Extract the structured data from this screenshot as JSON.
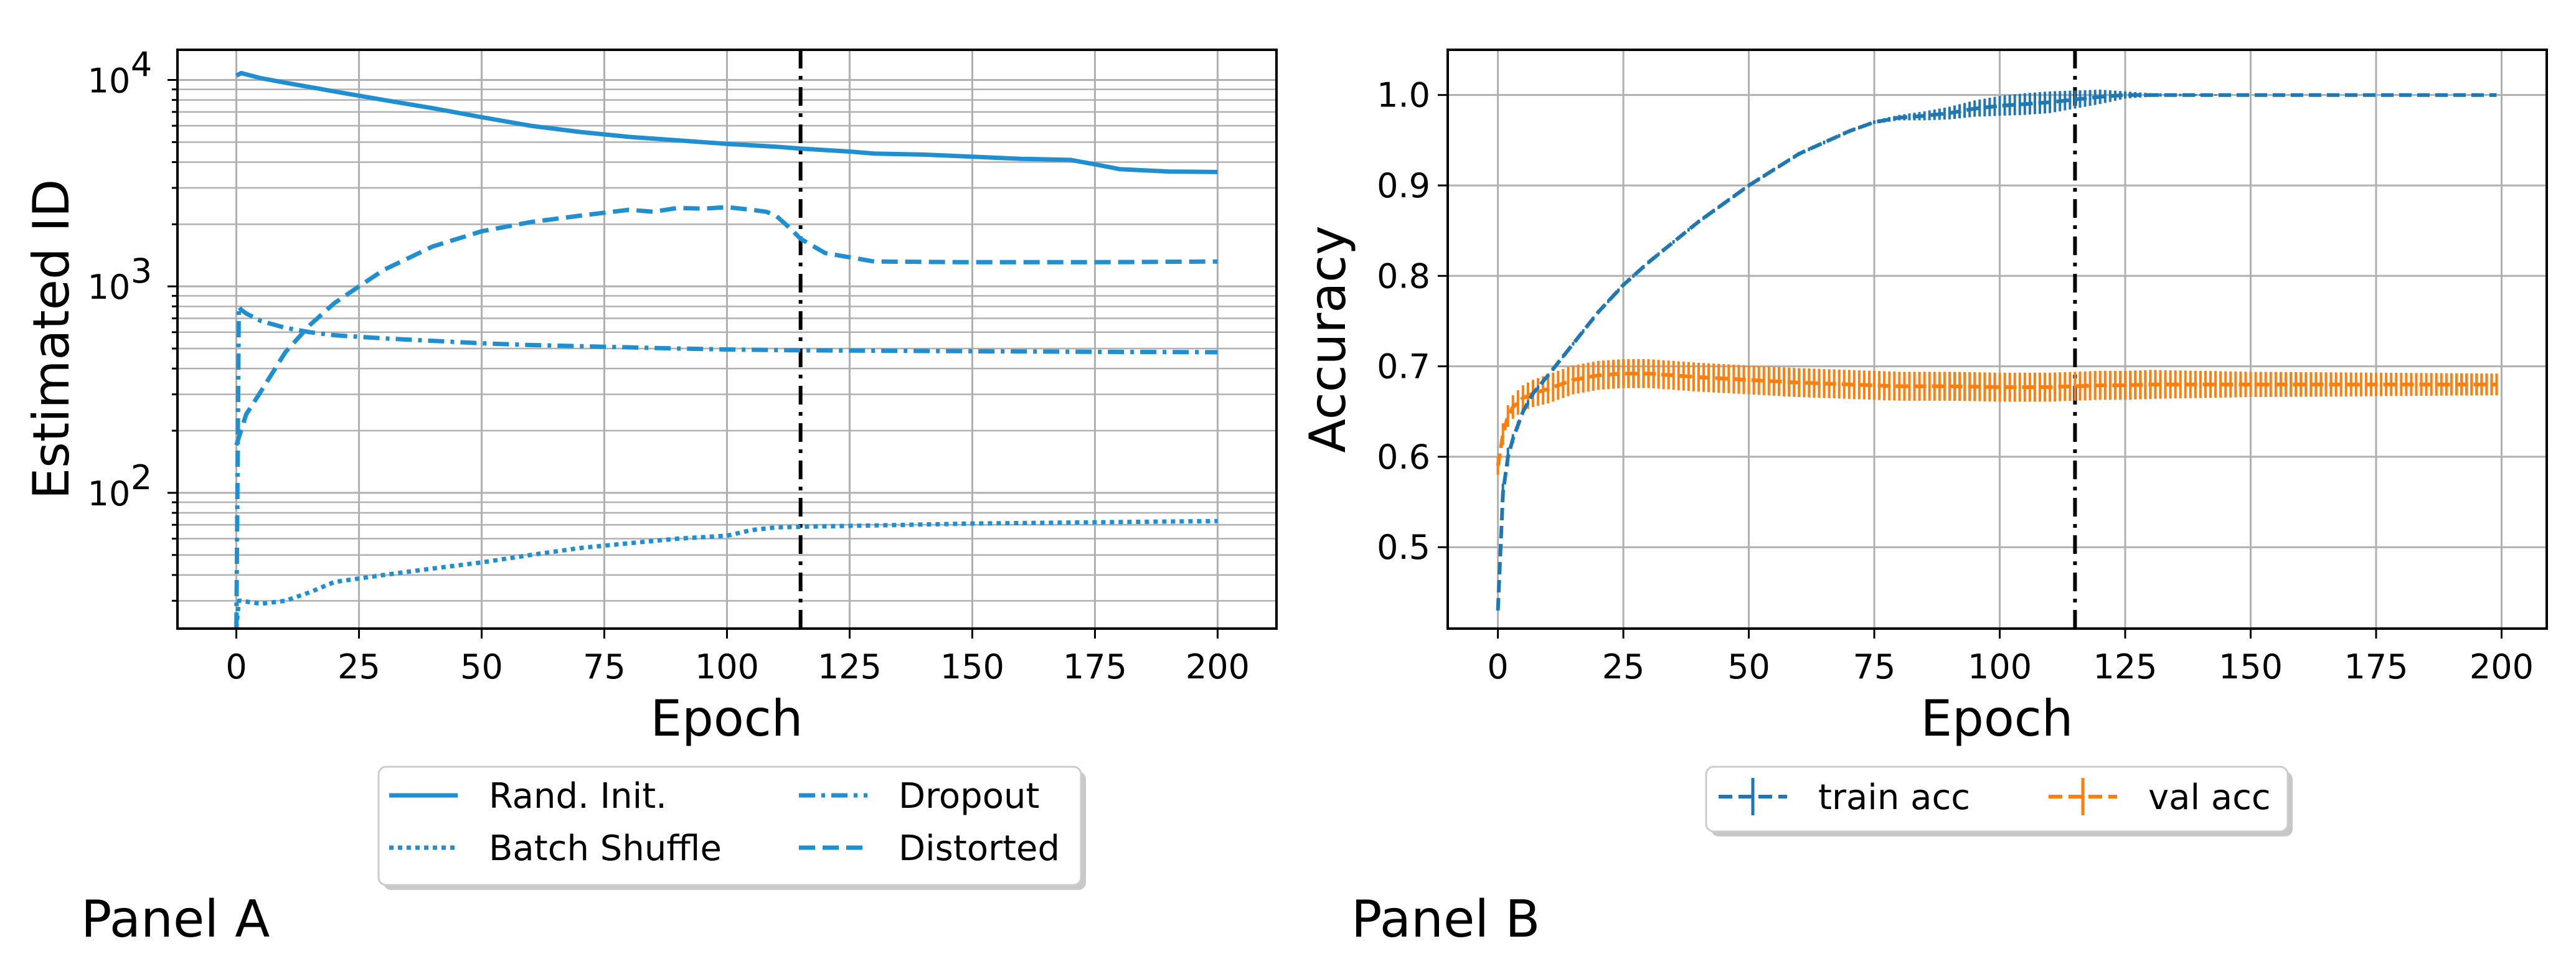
{
  "colors": {
    "blue": "#1f8fd2",
    "train": "#1f77b4",
    "orange": "#ff7f0e",
    "grid": "#b0b0b0"
  },
  "panels": {
    "a": "Panel A",
    "b": "Panel B"
  },
  "chart_data": [
    {
      "type": "line",
      "id": "panel-a",
      "xlabel": "Epoch",
      "ylabel": "Estimated ID",
      "yscale": "log",
      "xlim": [
        -12,
        212
      ],
      "ylim": [
        22,
        14000
      ],
      "xticks": [
        0,
        25,
        50,
        75,
        100,
        125,
        150,
        175,
        200
      ],
      "yticks": [
        {
          "value": 100,
          "label": "10",
          "exp": "2"
        },
        {
          "value": 1000,
          "label": "10",
          "exp": "3"
        },
        {
          "value": 10000,
          "label": "10",
          "exp": "4"
        }
      ],
      "vline": 115,
      "grid": true,
      "legend_position": "below",
      "series": [
        {
          "name": "Rand. Init.",
          "style": "solid",
          "x": [
            0,
            1,
            5,
            10,
            20,
            30,
            40,
            50,
            60,
            70,
            80,
            90,
            100,
            110,
            115,
            125,
            130,
            140,
            150,
            160,
            170,
            175,
            180,
            190,
            200
          ],
          "y": [
            10500,
            10800,
            10200,
            9700,
            8800,
            8000,
            7300,
            6600,
            6000,
            5600,
            5300,
            5100,
            4900,
            4750,
            4650,
            4500,
            4400,
            4350,
            4250,
            4150,
            4100,
            3900,
            3700,
            3600,
            3580
          ]
        },
        {
          "name": "Batch Shuffle",
          "style": "dotted",
          "x": [
            0,
            0.5,
            1,
            5,
            10,
            15,
            20,
            30,
            40,
            50,
            60,
            70,
            80,
            90,
            100,
            105,
            110,
            115,
            130,
            150,
            175,
            200
          ],
          "y": [
            22,
            30,
            30,
            29,
            30,
            33,
            37,
            40,
            43,
            46,
            50,
            54,
            57,
            60,
            62,
            66,
            68,
            68.5,
            69.5,
            71,
            72,
            73
          ]
        },
        {
          "name": "Dropout",
          "style": "dashdot",
          "x": [
            0,
            0.5,
            1,
            2,
            5,
            10,
            15,
            20,
            25,
            30,
            40,
            50,
            60,
            75,
            90,
            100,
            115,
            130,
            150,
            175,
            200
          ],
          "y": [
            22,
            800,
            770,
            740,
            680,
            630,
            600,
            580,
            570,
            560,
            545,
            530,
            520,
            510,
            500,
            495,
            490,
            488,
            485,
            482,
            480
          ]
        },
        {
          "name": "Distorted",
          "style": "dashed",
          "x": [
            0,
            2,
            5,
            10,
            15,
            20,
            25,
            30,
            40,
            50,
            60,
            70,
            80,
            85,
            90,
            95,
            100,
            105,
            108,
            110,
            113,
            115,
            120,
            130,
            150,
            175,
            200
          ],
          "y": [
            170,
            240,
            310,
            480,
            650,
            830,
            1000,
            1200,
            1560,
            1850,
            2050,
            2200,
            2350,
            2300,
            2400,
            2380,
            2420,
            2350,
            2300,
            2200,
            1900,
            1700,
            1450,
            1320,
            1310,
            1310,
            1320
          ]
        }
      ]
    },
    {
      "type": "line",
      "id": "panel-b",
      "xlabel": "Epoch",
      "ylabel": "Accuracy",
      "xlim": [
        -10,
        209
      ],
      "ylim": [
        0.41,
        1.05
      ],
      "xticks": [
        0,
        25,
        50,
        75,
        100,
        125,
        150,
        175,
        200
      ],
      "yticks": [
        0.5,
        0.6,
        0.7,
        0.8,
        0.9,
        1.0
      ],
      "vline": 115,
      "grid": true,
      "legend_position": "below",
      "series": [
        {
          "name": "train acc",
          "style": "dashed-errorbar",
          "x": [
            0,
            1,
            2,
            3,
            5,
            7,
            10,
            15,
            20,
            25,
            30,
            40,
            50,
            60,
            70,
            75,
            80,
            85,
            90,
            95,
            100,
            105,
            110,
            115,
            120,
            125,
            130,
            150,
            175,
            199
          ],
          "y": [
            0.43,
            0.56,
            0.6,
            0.62,
            0.65,
            0.67,
            0.69,
            0.725,
            0.76,
            0.79,
            0.815,
            0.86,
            0.9,
            0.935,
            0.96,
            0.97,
            0.975,
            0.977,
            0.98,
            0.985,
            0.988,
            0.99,
            0.992,
            0.995,
            0.998,
            1.0,
            1.0,
            1.0,
            1.0,
            1.0
          ],
          "err": [
            0,
            0.01,
            0.01,
            0.005,
            0.003,
            0.002,
            0.002,
            0.002,
            0.002,
            0.002,
            0.002,
            0.002,
            0.002,
            0.002,
            0.002,
            0.002,
            0.003,
            0.005,
            0.007,
            0.009,
            0.011,
            0.012,
            0.012,
            0.01,
            0.008,
            0.004,
            0.002,
            0.0,
            0.0,
            0.0
          ]
        },
        {
          "name": "val acc",
          "style": "dashed-errorbar",
          "x": [
            0,
            1,
            2,
            3,
            5,
            7,
            10,
            15,
            20,
            25,
            30,
            35,
            40,
            50,
            60,
            70,
            80,
            90,
            100,
            110,
            115,
            120,
            125,
            130,
            150,
            175,
            199
          ],
          "y": [
            0.59,
            0.625,
            0.645,
            0.655,
            0.665,
            0.67,
            0.675,
            0.685,
            0.69,
            0.692,
            0.692,
            0.69,
            0.688,
            0.685,
            0.682,
            0.68,
            0.678,
            0.678,
            0.677,
            0.677,
            0.678,
            0.679,
            0.679,
            0.68,
            0.68,
            0.68,
            0.68
          ],
          "err": [
            0.01,
            0.012,
            0.012,
            0.013,
            0.014,
            0.015,
            0.016,
            0.016,
            0.016,
            0.016,
            0.016,
            0.016,
            0.016,
            0.016,
            0.016,
            0.016,
            0.016,
            0.016,
            0.016,
            0.016,
            0.016,
            0.016,
            0.016,
            0.016,
            0.014,
            0.013,
            0.012
          ]
        }
      ]
    }
  ]
}
